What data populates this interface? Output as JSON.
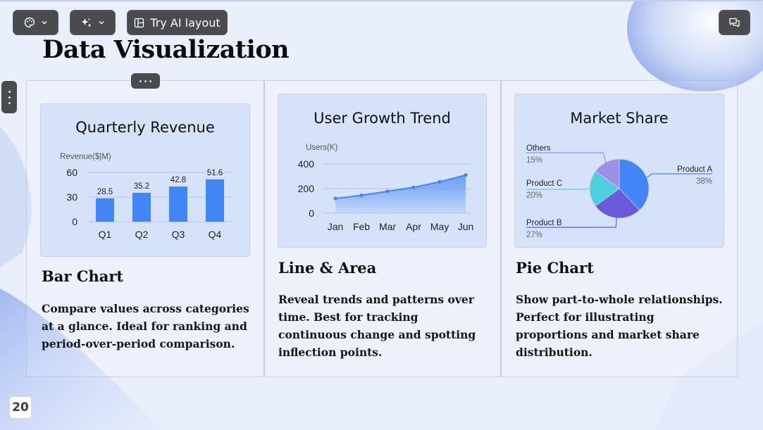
{
  "toolbar": {
    "theme_button": {
      "icon": "palette-icon",
      "dropdown_icon": "chevron-down-icon"
    },
    "ai_button": {
      "icon": "sparkles-icon",
      "dropdown_icon": "chevron-down-icon"
    },
    "ai_layout_button": {
      "icon": "layout-icon",
      "label": "Try AI layout"
    },
    "comment_button": {
      "icon": "comments-icon"
    }
  },
  "slide": {
    "title": "Data Visualization",
    "page_number": "20",
    "accent_color": "#4285f4"
  },
  "sections": [
    {
      "card_title": "Quarterly Revenue",
      "title": "Bar Chart",
      "description": "Compare values across categories at a glance. Ideal for ranking and period-over-period comparison."
    },
    {
      "card_title": "User Growth Trend",
      "title": "Line & Area",
      "description": "Reveal trends and patterns over time. Best for tracking continuous change and spotting inflection points."
    },
    {
      "card_title": "Market Share",
      "title": "Pie Chart",
      "description": "Show part-to-whole relationships. Perfect for illustrating proportions and market share distribution."
    }
  ],
  "chart_data": [
    {
      "type": "bar",
      "title": "Quarterly Revenue",
      "ylabel": "Revenue($|M)",
      "categories": [
        "Q1",
        "Q2",
        "Q3",
        "Q4"
      ],
      "values": [
        28.5,
        35.2,
        42.8,
        51.6
      ],
      "value_labels": [
        "28.5",
        "35.2",
        "42.8",
        "51.6"
      ],
      "yticks": [
        "0",
        "30",
        "60"
      ],
      "ylim": [
        0,
        60
      ],
      "color": "#4285f4",
      "grid": true
    },
    {
      "type": "area",
      "title": "User Growth Trend",
      "ylabel": "Users(K)",
      "categories": [
        "Jan",
        "Feb",
        "Mar",
        "Apr",
        "May",
        "Jun"
      ],
      "values": [
        120,
        145,
        178,
        210,
        255,
        310
      ],
      "yticks": [
        "0",
        "200",
        "400"
      ],
      "ylim": [
        0,
        400
      ],
      "color": "#4285f4",
      "grid": true
    },
    {
      "type": "pie",
      "title": "Market Share",
      "slices": [
        {
          "name": "Product A",
          "value": 38,
          "label": "38%",
          "color": "#4285f4"
        },
        {
          "name": "Product B",
          "value": 27,
          "label": "27%",
          "color": "#6a5ad9"
        },
        {
          "name": "Product C",
          "value": 20,
          "label": "20%",
          "color": "#4ecfe0"
        },
        {
          "name": "Others",
          "value": 15,
          "label": "15%",
          "color": "#a08fe6"
        }
      ]
    }
  ]
}
